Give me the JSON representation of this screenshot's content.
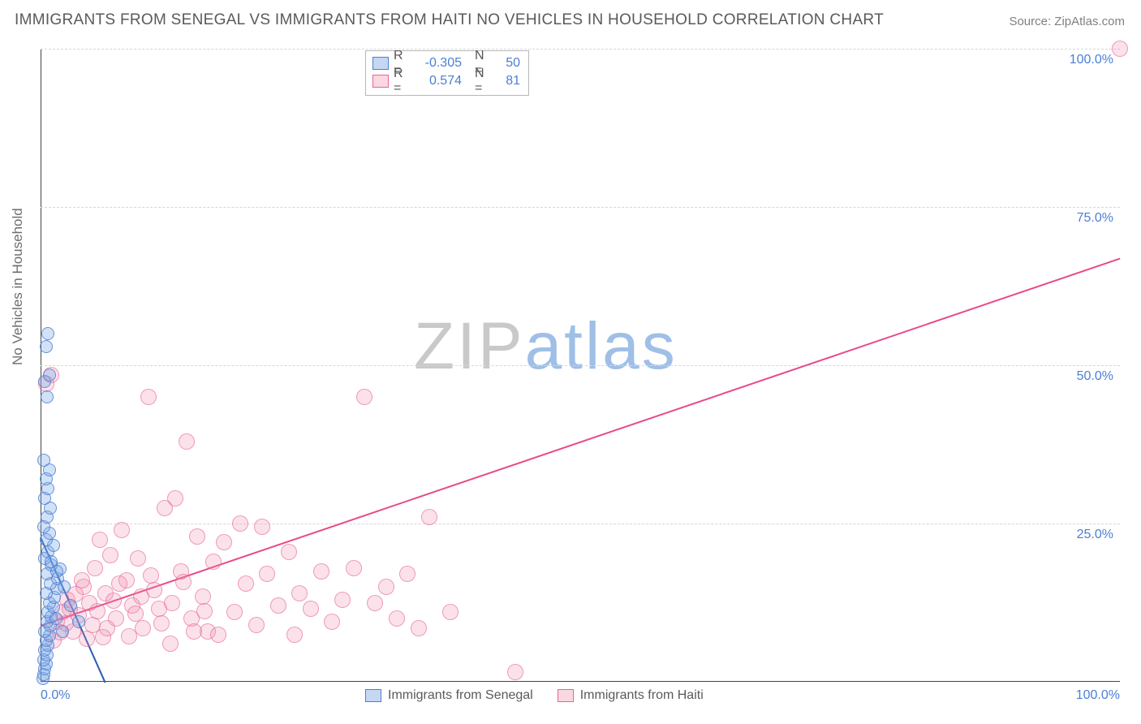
{
  "title": "IMMIGRANTS FROM SENEGAL VS IMMIGRANTS FROM HAITI NO VEHICLES IN HOUSEHOLD CORRELATION CHART",
  "source": "Source: ZipAtlas.com",
  "ylabel": "No Vehicles in Household",
  "watermark": {
    "zip": "ZIP",
    "atlas": "atlas",
    "zip_color": "#c9c9c9",
    "atlas_color": "#9fbfe6"
  },
  "chart": {
    "type": "scatter",
    "xlim": [
      0,
      100
    ],
    "ylim": [
      0,
      100
    ],
    "yticks": [
      {
        "v": 25,
        "label": "25.0%"
      },
      {
        "v": 50,
        "label": "50.0%"
      },
      {
        "v": 75,
        "label": "75.0%"
      },
      {
        "v": 100,
        "label": "100.0%"
      }
    ],
    "xticks": [
      {
        "v": 0,
        "label": "0.0%"
      },
      {
        "v": 100,
        "label": "100.0%"
      }
    ],
    "grid_color": "#d7d7d7",
    "background_color": "#ffffff",
    "marker_radius_blue": 8,
    "marker_radius_pink": 10
  },
  "series": {
    "senegal": {
      "label": "Immigrants from Senegal",
      "color_fill": "rgba(126,168,228,0.35)",
      "color_stroke": "#4a7fd6",
      "R": "-0.305",
      "N": "50",
      "trend": {
        "x1": 0,
        "y1": 23,
        "x2": 6,
        "y2": 0,
        "color": "#2a5db0",
        "width": 2
      },
      "points": [
        [
          0.2,
          0.5
        ],
        [
          0.3,
          1.2
        ],
        [
          0.4,
          2.0
        ],
        [
          0.5,
          2.8
        ],
        [
          0.3,
          3.5
        ],
        [
          0.6,
          4.2
        ],
        [
          0.4,
          5.0
        ],
        [
          0.7,
          5.8
        ],
        [
          0.5,
          6.5
        ],
        [
          0.8,
          7.3
        ],
        [
          0.4,
          8.0
        ],
        [
          0.9,
          8.8
        ],
        [
          0.6,
          9.5
        ],
        [
          1.0,
          10.3
        ],
        [
          0.7,
          11.0
        ],
        [
          1.2,
          11.8
        ],
        [
          0.8,
          12.5
        ],
        [
          1.3,
          13.3
        ],
        [
          0.5,
          14.0
        ],
        [
          1.5,
          14.8
        ],
        [
          0.9,
          15.5
        ],
        [
          1.6,
          16.3
        ],
        [
          0.6,
          17.0
        ],
        [
          1.8,
          17.8
        ],
        [
          1.0,
          18.5
        ],
        [
          0.4,
          19.5
        ],
        [
          0.7,
          20.5
        ],
        [
          1.2,
          21.5
        ],
        [
          0.5,
          22.5
        ],
        [
          0.8,
          23.5
        ],
        [
          0.3,
          24.5
        ],
        [
          0.6,
          26.0
        ],
        [
          0.9,
          27.5
        ],
        [
          0.4,
          29.0
        ],
        [
          0.7,
          30.5
        ],
        [
          0.5,
          32.0
        ],
        [
          0.8,
          33.5
        ],
        [
          0.3,
          35.0
        ],
        [
          1.5,
          17.5
        ],
        [
          2.2,
          15.0
        ],
        [
          2.8,
          12.0
        ],
        [
          3.5,
          9.5
        ],
        [
          0.6,
          45.0
        ],
        [
          0.4,
          47.5
        ],
        [
          0.8,
          48.5
        ],
        [
          0.5,
          53.0
        ],
        [
          0.7,
          55.0
        ],
        [
          1.0,
          19.0
        ],
        [
          1.4,
          10.0
        ],
        [
          2.0,
          8.0
        ]
      ]
    },
    "haiti": {
      "label": "Immigrants from Haiti",
      "color_fill": "rgba(240,140,170,0.25)",
      "color_stroke": "#e86496",
      "R": "0.574",
      "N": "81",
      "trend": {
        "x1": 0,
        "y1": 9,
        "x2": 100,
        "y2": 67,
        "color": "#e84a8a",
        "width": 2
      },
      "points": [
        [
          0.5,
          47.0
        ],
        [
          1.0,
          48.5
        ],
        [
          1.5,
          9.5
        ],
        [
          2.0,
          11.0
        ],
        [
          2.5,
          13.0
        ],
        [
          3.0,
          8.0
        ],
        [
          3.5,
          10.5
        ],
        [
          4.0,
          15.0
        ],
        [
          4.5,
          12.5
        ],
        [
          5.0,
          18.0
        ],
        [
          5.5,
          22.5
        ],
        [
          5.8,
          7.0
        ],
        [
          6.0,
          14.0
        ],
        [
          6.5,
          20.0
        ],
        [
          7.0,
          10.0
        ],
        [
          7.5,
          24.0
        ],
        [
          8.0,
          16.0
        ],
        [
          8.5,
          12.0
        ],
        [
          9.0,
          19.5
        ],
        [
          9.5,
          8.5
        ],
        [
          10.0,
          45.0
        ],
        [
          10.5,
          14.5
        ],
        [
          11.0,
          11.5
        ],
        [
          11.5,
          27.5
        ],
        [
          12.0,
          6.0
        ],
        [
          12.5,
          29.0
        ],
        [
          13.0,
          17.5
        ],
        [
          13.5,
          38.0
        ],
        [
          14.0,
          10.0
        ],
        [
          14.5,
          23.0
        ],
        [
          15.0,
          13.5
        ],
        [
          15.5,
          8.0
        ],
        [
          16.0,
          19.0
        ],
        [
          17.0,
          22.0
        ],
        [
          18.0,
          11.0
        ],
        [
          18.5,
          25.0
        ],
        [
          19.0,
          15.5
        ],
        [
          20.0,
          9.0
        ],
        [
          20.5,
          24.5
        ],
        [
          21.0,
          17.0
        ],
        [
          22.0,
          12.0
        ],
        [
          23.0,
          20.5
        ],
        [
          23.5,
          7.5
        ],
        [
          24.0,
          14.0
        ],
        [
          25.0,
          11.5
        ],
        [
          26.0,
          17.5
        ],
        [
          27.0,
          9.5
        ],
        [
          28.0,
          13.0
        ],
        [
          29.0,
          18.0
        ],
        [
          30.0,
          45.0
        ],
        [
          31.0,
          12.5
        ],
        [
          32.0,
          15.0
        ],
        [
          33.0,
          10.0
        ],
        [
          34.0,
          17.0
        ],
        [
          35.0,
          8.5
        ],
        [
          36.0,
          26.0
        ],
        [
          38.0,
          11.0
        ],
        [
          44.0,
          1.5
        ],
        [
          100.0,
          100.0
        ],
        [
          1.2,
          6.5
        ],
        [
          1.8,
          7.8
        ],
        [
          2.3,
          9.2
        ],
        [
          2.7,
          11.5
        ],
        [
          3.2,
          13.8
        ],
        [
          3.8,
          16.0
        ],
        [
          4.3,
          6.8
        ],
        [
          4.8,
          9.0
        ],
        [
          5.3,
          11.2
        ],
        [
          6.2,
          8.5
        ],
        [
          6.8,
          12.8
        ],
        [
          7.3,
          15.5
        ],
        [
          8.2,
          7.2
        ],
        [
          8.8,
          10.8
        ],
        [
          9.3,
          13.5
        ],
        [
          10.2,
          16.8
        ],
        [
          11.2,
          9.2
        ],
        [
          12.2,
          12.5
        ],
        [
          13.2,
          15.8
        ],
        [
          14.2,
          8.0
        ],
        [
          15.2,
          11.2
        ],
        [
          16.5,
          7.5
        ]
      ]
    }
  }
}
